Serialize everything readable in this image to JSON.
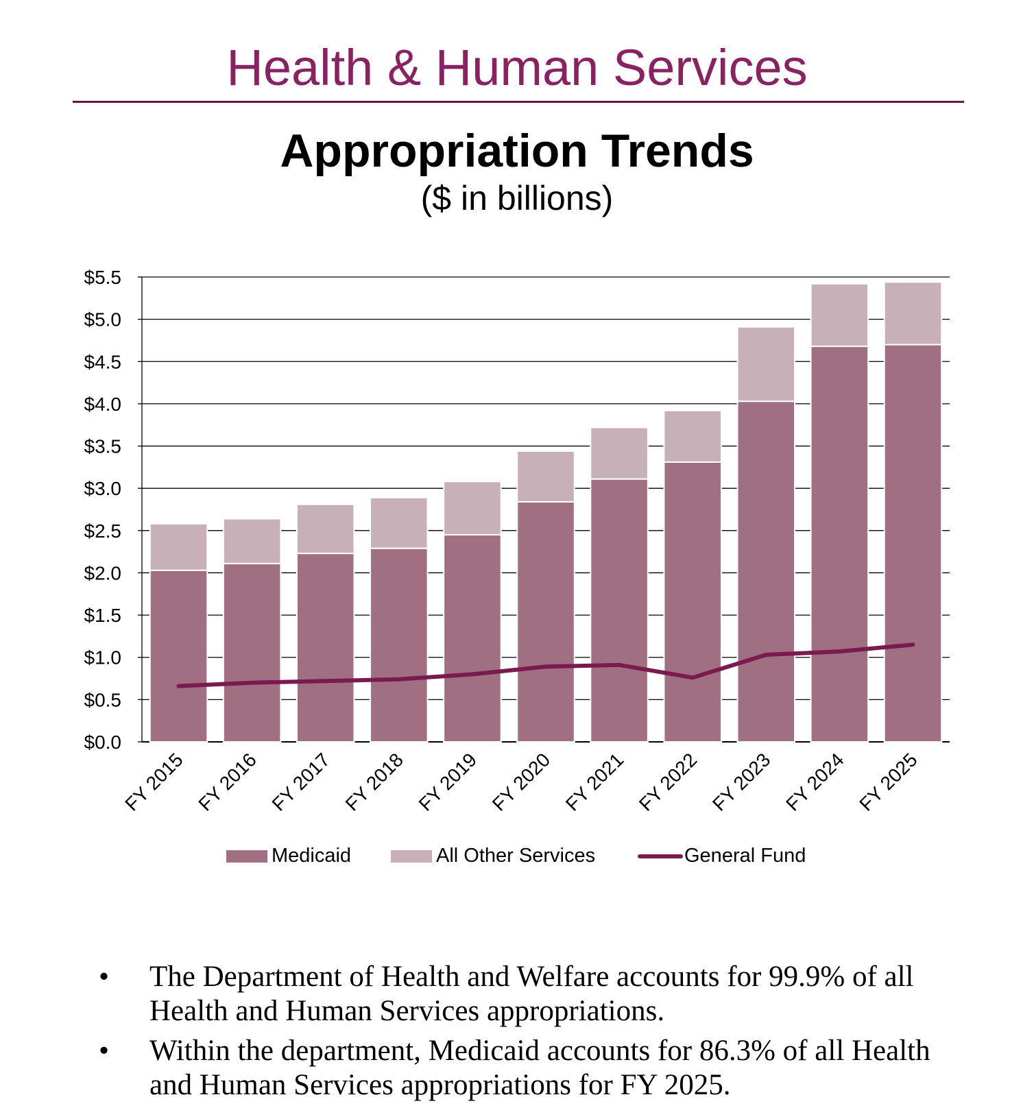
{
  "header": {
    "title": "Health & Human Services"
  },
  "chart_data": {
    "type": "bar",
    "stacked": true,
    "title": "Appropriation Trends",
    "subtitle": "($ in billions)",
    "categories": [
      "FY 2015",
      "FY 2016",
      "FY 2017",
      "FY 2018",
      "FY 2019",
      "FY 2020",
      "FY 2021",
      "FY 2022",
      "FY 2023",
      "FY 2024",
      "FY 2025"
    ],
    "series": [
      {
        "name": "Medicaid",
        "kind": "bar",
        "color": "#a06f82",
        "values": [
          2.03,
          2.11,
          2.23,
          2.29,
          2.45,
          2.84,
          3.11,
          3.31,
          4.03,
          4.68,
          4.7
        ]
      },
      {
        "name": "All Other Services",
        "kind": "bar",
        "color": "#c7b0b7",
        "values": [
          0.55,
          0.53,
          0.58,
          0.6,
          0.63,
          0.6,
          0.61,
          0.61,
          0.88,
          0.74,
          0.74
        ]
      },
      {
        "name": "General Fund",
        "kind": "line",
        "color": "#7a1a4e",
        "values": [
          0.66,
          0.7,
          0.72,
          0.74,
          0.8,
          0.89,
          0.91,
          0.76,
          1.03,
          1.07,
          1.15
        ]
      }
    ],
    "ylim": [
      0,
      5.5
    ],
    "yticks": [
      "$0.0",
      "$0.5",
      "$1.0",
      "$1.5",
      "$2.0",
      "$2.5",
      "$3.0",
      "$3.5",
      "$4.0",
      "$4.5",
      "$5.0",
      "$5.5"
    ],
    "grid": true,
    "legend_position": "bottom"
  },
  "legend": {
    "medicaid": "Medicaid",
    "other": "All Other Services",
    "general_fund": "General Fund"
  },
  "notes": [
    "The Department of Health and Welfare accounts for 99.9% of all Health and Human Services appropriations.",
    "Within the department, Medicaid accounts for 86.3% of all Health and Human Services appropriations for FY 2025."
  ],
  "bullet_char": "•"
}
